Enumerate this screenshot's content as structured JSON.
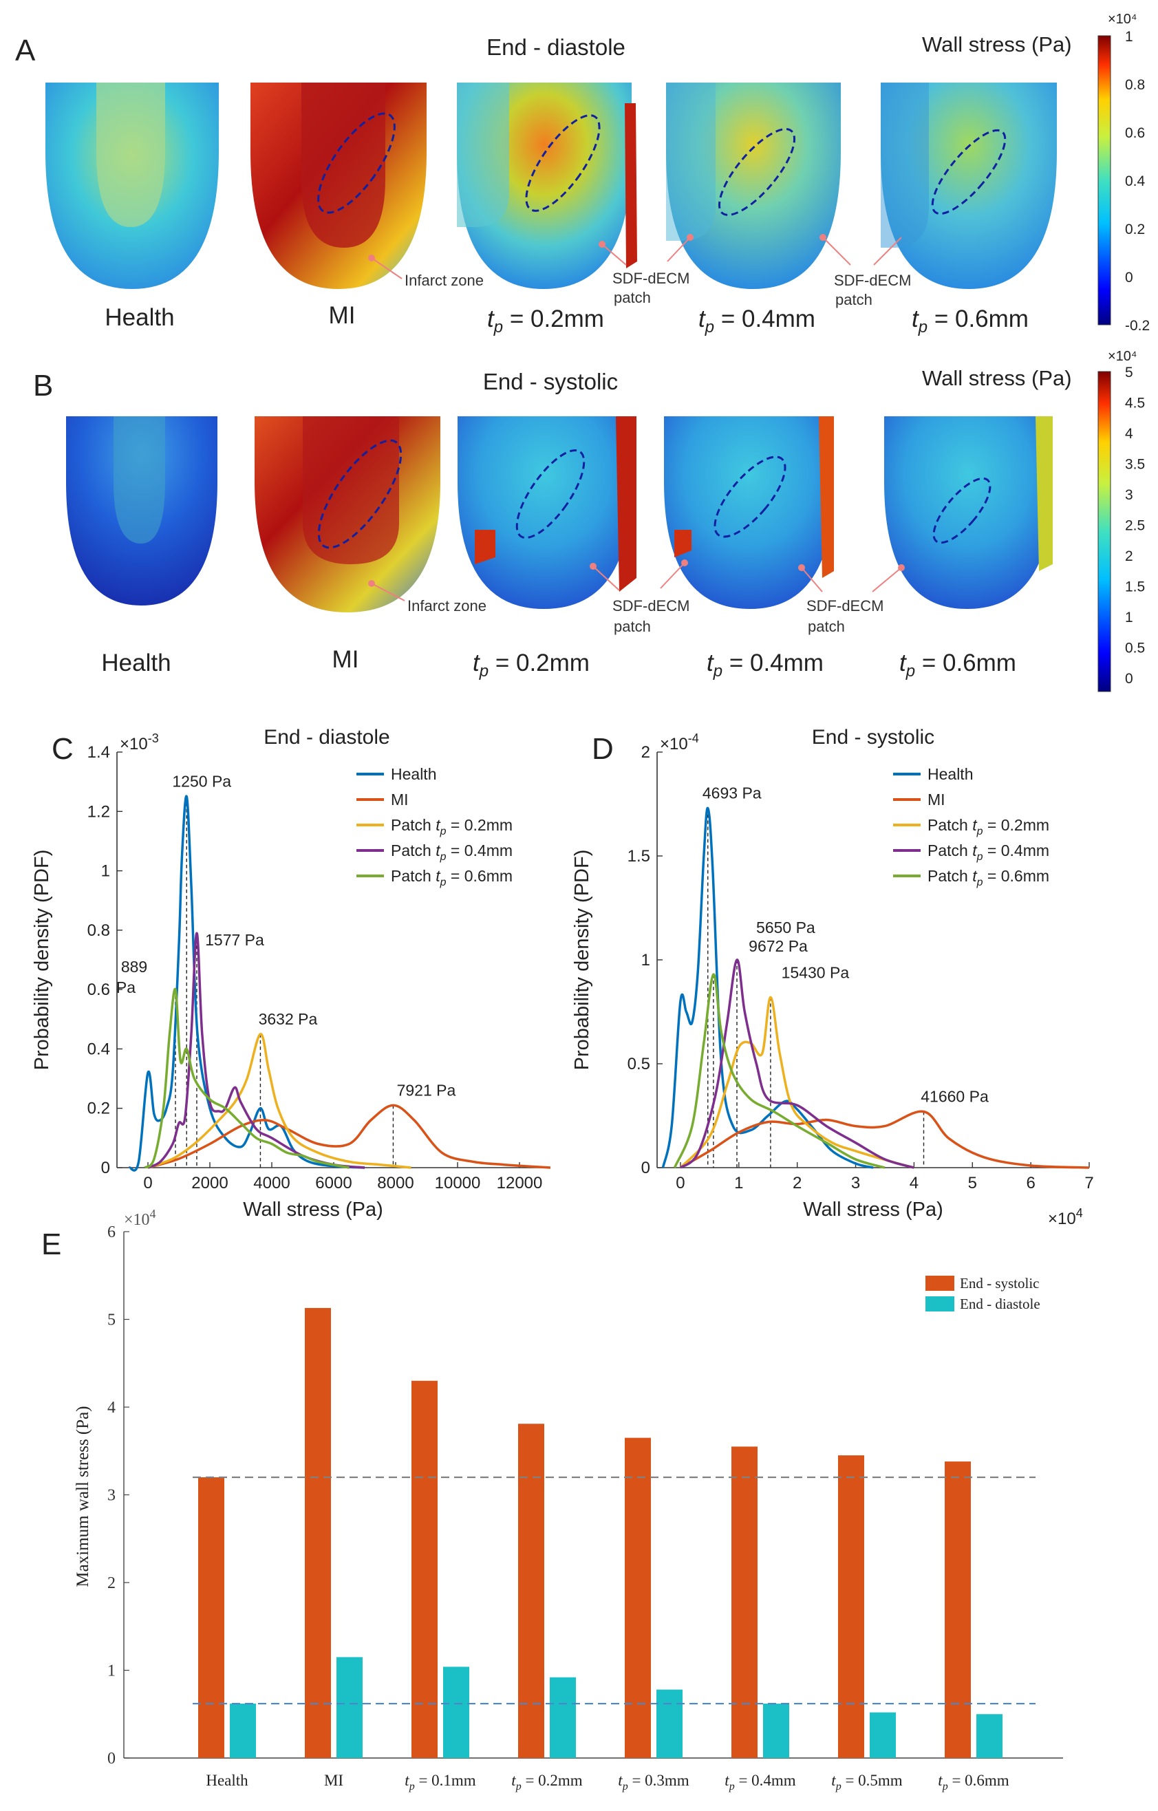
{
  "colors": {
    "health": "#0072BD",
    "mi": "#D95319",
    "p02": "#EDB120",
    "p04": "#7E2F8E",
    "p06": "#77AC30",
    "bar_systolic": "#D95319",
    "bar_diastole": "#1AC0C6",
    "ref_sys": "#808080",
    "ref_dia": "#4A86C8"
  },
  "panel_a": {
    "letter": "A",
    "title": "End - diastole",
    "colorbar_title": "Wall stress (Pa)",
    "colorbar_exp": "×10⁴",
    "colorbar_ticks": [
      "1",
      "0.8",
      "0.6",
      "0.4",
      "0.2",
      "0",
      "-0.2"
    ],
    "labels": [
      "Health",
      "MI",
      "0.2mm",
      "0.4mm",
      "0.6mm"
    ],
    "tp_prefix": "t",
    "tp_sub": "p",
    "tp_eq": " = ",
    "annotations": {
      "infarct": "Infarct zone",
      "patch_line1": "SDF-dECM",
      "patch_line2": "patch"
    }
  },
  "panel_b": {
    "letter": "B",
    "title": "End - systolic",
    "colorbar_title": "Wall stress (Pa)",
    "colorbar_exp": "×10⁴",
    "colorbar_ticks": [
      "5",
      "4.5",
      "4",
      "3.5",
      "3",
      "2.5",
      "2",
      "1.5",
      "1",
      "0.5",
      "0"
    ],
    "labels": [
      "Health",
      "MI",
      "0.2mm",
      "0.4mm",
      "0.6mm"
    ],
    "annotations": {
      "infarct": "Infarct zone",
      "patch_line1": "SDF-dECM",
      "patch_line2": "patch"
    }
  },
  "chart_data": [
    {
      "id": "C",
      "type": "line",
      "letter": "C",
      "title": "End - diastole",
      "xlabel": "Wall stress (Pa)",
      "ylabel": "Probability density (PDF)",
      "y_exponent": "×10",
      "y_exponent_power": "-3",
      "xlim": [
        -1000,
        13000
      ],
      "ylim": [
        0,
        1.4
      ],
      "xticks": [
        0,
        2000,
        4000,
        6000,
        8000,
        10000,
        12000
      ],
      "yticks": [
        0,
        0.2,
        0.4,
        0.6,
        0.8,
        1,
        1.2,
        1.4
      ],
      "legend": [
        "Health",
        "MI",
        "Patch tp = 0.2mm",
        "Patch tp = 0.4mm",
        "Patch tp = 0.6mm"
      ],
      "legend_names": [
        "Health",
        "MI",
        "Patch ",
        "Patch ",
        "Patch "
      ],
      "legend_suffix": [
        "",
        "",
        " = 0.2mm",
        " = 0.4mm",
        " = 0.6mm"
      ],
      "series": [
        {
          "name": "Health",
          "x": [
            -600,
            -300,
            0,
            200,
            400,
            600,
            800,
            1000,
            1100,
            1250,
            1400,
            1600,
            2000,
            2500,
            3000,
            3300,
            3632,
            3900,
            4300,
            4700,
            5200,
            6000,
            7000
          ],
          "values": [
            0,
            0.02,
            0.32,
            0.18,
            0.16,
            0.2,
            0.32,
            0.75,
            1.05,
            1.25,
            0.95,
            0.45,
            0.2,
            0.1,
            0.07,
            0.12,
            0.2,
            0.13,
            0.14,
            0.06,
            0.02,
            0.005,
            0
          ]
        },
        {
          "name": "MI",
          "x": [
            0,
            1000,
            2000,
            3000,
            3800,
            4500,
            5500,
            6500,
            7200,
            7921,
            8600,
            9500,
            10500,
            11500,
            13000
          ],
          "values": [
            0,
            0.03,
            0.08,
            0.14,
            0.16,
            0.13,
            0.08,
            0.08,
            0.16,
            0.21,
            0.16,
            0.05,
            0.02,
            0.01,
            0
          ]
        },
        {
          "name": "Patch tp = 0.2mm",
          "x": [
            0,
            800,
            1500,
            2200,
            2800,
            3200,
            3632,
            3900,
            4200,
            4700,
            5500,
            6500,
            7500,
            8500
          ],
          "values": [
            0,
            0.03,
            0.08,
            0.15,
            0.22,
            0.3,
            0.45,
            0.33,
            0.2,
            0.1,
            0.05,
            0.02,
            0.01,
            0
          ]
        },
        {
          "name": "Patch tp = 0.4mm",
          "x": [
            0,
            400,
            800,
            1000,
            1200,
            1400,
            1577,
            1750,
            2000,
            2300,
            2500,
            2800,
            3000,
            3500,
            4000,
            5000,
            6000,
            7000
          ],
          "values": [
            0,
            0.02,
            0.08,
            0.15,
            0.17,
            0.45,
            0.79,
            0.45,
            0.22,
            0.19,
            0.2,
            0.27,
            0.22,
            0.13,
            0.1,
            0.04,
            0.01,
            0
          ]
        },
        {
          "name": "Patch tp = 0.6mm",
          "x": [
            -100,
            200,
            500,
            700,
            889,
            1050,
            1250,
            1500,
            2000,
            2500,
            3000,
            3500,
            4000,
            4500,
            5000,
            5500,
            6500
          ],
          "values": [
            0,
            0.03,
            0.2,
            0.45,
            0.6,
            0.36,
            0.4,
            0.3,
            0.23,
            0.2,
            0.15,
            0.1,
            0.08,
            0.05,
            0.04,
            0.02,
            0
          ]
        }
      ],
      "annotations": [
        {
          "text": "1250 Pa",
          "x": 1250,
          "y": 1.25
        },
        {
          "text": "1577 Pa",
          "x": 1577,
          "y": 0.79
        },
        {
          "text": "3632 Pa",
          "x": 3632,
          "y": 0.45
        },
        {
          "text": "7921 Pa",
          "x": 7921,
          "y": 0.21
        },
        {
          "text": "889",
          "text2": "Pa",
          "x": 889,
          "y": 0.6
        }
      ],
      "vlines": [
        {
          "x": 889,
          "y": 0.6
        },
        {
          "x": 1250,
          "y": 1.25
        },
        {
          "x": 1577,
          "y": 0.79
        },
        {
          "x": 3632,
          "y": 0.45
        },
        {
          "x": 7921,
          "y": 0.21
        }
      ]
    },
    {
      "id": "D",
      "type": "line",
      "letter": "D",
      "title": "End - systolic",
      "xlabel": "Wall stress (Pa)",
      "ylabel": "Probability density (PDF)",
      "y_exponent": "×10",
      "y_exponent_power": "-4",
      "x_exponent": "×10",
      "x_exponent_power": "4",
      "xlim": [
        -0.4,
        7
      ],
      "ylim": [
        0,
        2
      ],
      "xticks": [
        0,
        1,
        2,
        3,
        4,
        5,
        6,
        7
      ],
      "yticks": [
        0,
        0.5,
        1,
        1.5,
        2
      ],
      "legend": [
        "Health",
        "MI",
        "Patch tp = 0.2mm",
        "Patch tp = 0.4mm",
        "Patch tp = 0.6mm"
      ],
      "legend_names": [
        "Health",
        "MI",
        "Patch ",
        "Patch ",
        "Patch "
      ],
      "legend_suffix": [
        "",
        "",
        " = 0.2mm",
        " = 0.4mm",
        " = 0.6mm"
      ],
      "series": [
        {
          "name": "Health",
          "x": [
            -0.3,
            -0.15,
            0,
            0.1,
            0.2,
            0.3,
            0.4,
            0.469,
            0.55,
            0.7,
            0.9,
            1.2,
            1.5,
            1.8,
            2.0,
            2.3,
            2.6,
            3.0,
            3.3
          ],
          "values": [
            0,
            0.2,
            0.8,
            0.75,
            0.7,
            0.95,
            1.5,
            1.73,
            1.45,
            0.5,
            0.2,
            0.18,
            0.25,
            0.32,
            0.28,
            0.18,
            0.08,
            0.02,
            0
          ]
        },
        {
          "name": "MI",
          "x": [
            0,
            0.5,
            1.0,
            1.5,
            2.0,
            2.5,
            3.0,
            3.5,
            4.166,
            4.6,
            5.2,
            6.0,
            7.0
          ],
          "values": [
            0,
            0.08,
            0.17,
            0.22,
            0.21,
            0.23,
            0.2,
            0.2,
            0.27,
            0.14,
            0.05,
            0.01,
            0
          ]
        },
        {
          "name": "Patch tp = 0.2mm",
          "x": [
            0,
            0.5,
            0.8,
            1.0,
            1.2,
            1.4,
            1.543,
            1.7,
            1.9,
            2.2,
            2.6,
            3.0,
            3.6,
            4.0
          ],
          "values": [
            0,
            0.15,
            0.4,
            0.58,
            0.6,
            0.55,
            0.82,
            0.55,
            0.3,
            0.2,
            0.12,
            0.08,
            0.03,
            0
          ]
        },
        {
          "name": "Patch tp = 0.4mm",
          "x": [
            0,
            0.3,
            0.6,
            0.8,
            0.967,
            1.1,
            1.3,
            1.5,
            2.0,
            2.5,
            3.0,
            3.5,
            4.0
          ],
          "values": [
            0,
            0.07,
            0.35,
            0.7,
            1.0,
            0.75,
            0.5,
            0.33,
            0.3,
            0.2,
            0.12,
            0.04,
            0
          ]
        },
        {
          "name": "Patch tp = 0.6mm",
          "x": [
            -0.1,
            0.2,
            0.4,
            0.565,
            0.7,
            0.9,
            1.2,
            1.6,
            2.0,
            2.5,
            3.0,
            3.5
          ],
          "values": [
            0,
            0.2,
            0.6,
            0.93,
            0.65,
            0.45,
            0.33,
            0.27,
            0.2,
            0.12,
            0.04,
            0
          ]
        }
      ],
      "annotations": [
        {
          "text": "4693 Pa",
          "x": 0.469,
          "y": 1.73
        },
        {
          "text": "5650 Pa",
          "x": 0.565,
          "y": 0.93
        },
        {
          "text": "9672 Pa",
          "x": 0.967,
          "y": 1.0
        },
        {
          "text": "15430 Pa",
          "x": 1.543,
          "y": 0.82
        },
        {
          "text": "41660 Pa",
          "x": 4.166,
          "y": 0.27
        }
      ],
      "vlines": [
        {
          "x": 0.469,
          "y": 1.73
        },
        {
          "x": 0.565,
          "y": 0.93
        },
        {
          "x": 0.967,
          "y": 1.0
        },
        {
          "x": 1.543,
          "y": 0.82
        },
        {
          "x": 4.166,
          "y": 0.27
        }
      ]
    },
    {
      "id": "E",
      "type": "bar",
      "letter": "E",
      "title": "",
      "xlabel": "",
      "ylabel": "Maximum wall stress (Pa)",
      "y_exponent": "×10",
      "y_exponent_power": "4",
      "ylim": [
        0,
        6
      ],
      "yticks": [
        0,
        1,
        2,
        3,
        4,
        5,
        6
      ],
      "categories": [
        "Health",
        "MI",
        "tp = 0.1mm",
        "tp = 0.2mm",
        "tp = 0.3mm",
        "tp = 0.4mm",
        "tp = 0.5mm",
        "tp = 0.6mm"
      ],
      "cat_main": [
        "Health",
        "MI",
        "",
        "",
        "",
        "",
        "",
        ""
      ],
      "cat_value": [
        "",
        "",
        " = 0.1mm",
        " = 0.2mm",
        " = 0.3mm",
        " = 0.4mm",
        " = 0.5mm",
        " = 0.6mm"
      ],
      "legend": [
        "End - systolic",
        "End - diastole"
      ],
      "series": [
        {
          "name": "End - systolic",
          "values": [
            3.2,
            5.13,
            4.3,
            3.81,
            3.65,
            3.55,
            3.45,
            3.38
          ]
        },
        {
          "name": "End - diastole",
          "values": [
            0.62,
            1.15,
            1.04,
            0.92,
            0.78,
            0.62,
            0.52,
            0.5
          ]
        }
      ],
      "ref_lines": [
        3.2,
        0.62
      ]
    }
  ]
}
